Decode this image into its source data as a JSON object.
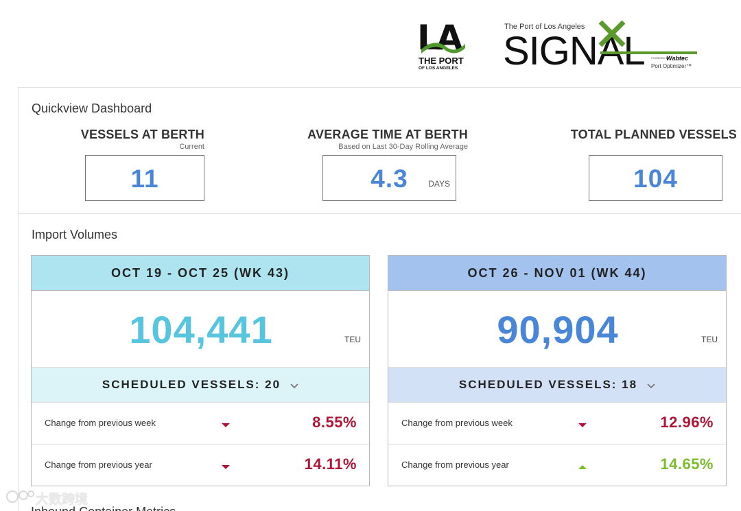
{
  "header": {
    "la_logo": {
      "mark": "LA",
      "line1": "THE PORT",
      "line2": "OF LOS ANGELES"
    },
    "signal_logo": {
      "overline": "The Port of Los Angeles",
      "wordmark": "SIGNAL",
      "powered_by": "POWERED BY",
      "partner": "Wabtec",
      "product": "Port Optimizer™"
    }
  },
  "quickview": {
    "title": "Quickview Dashboard",
    "metrics": [
      {
        "title": "VESSELS AT BERTH",
        "subtitle": "Current",
        "value": "11",
        "unit": ""
      },
      {
        "title": "AVERAGE TIME AT BERTH",
        "subtitle": "Based on Last 30-Day Rolling Average",
        "value": "4.3",
        "unit": "DAYS"
      },
      {
        "title": "TOTAL PLANNED VESSELS",
        "subtitle": "",
        "value": "104",
        "unit": ""
      }
    ]
  },
  "imports": {
    "title": "Import Volumes",
    "weeks": [
      {
        "range": "OCT 19 - OCT 25 (WK 43)",
        "value": "104,441",
        "unit": "TEU",
        "scheduled": "SCHEDULED VESSELS: 20",
        "rows": [
          {
            "label": "Change from previous week",
            "direction": "down",
            "value": "8.55%"
          },
          {
            "label": "Change from previous year",
            "direction": "down",
            "value": "14.11%"
          }
        ]
      },
      {
        "range": "OCT 26 - NOV 01 (WK 44)",
        "value": "90,904",
        "unit": "TEU",
        "scheduled": "SCHEDULED VESSELS: 18",
        "rows": [
          {
            "label": "Change from previous week",
            "direction": "down",
            "value": "12.96%"
          },
          {
            "label": "Change from previous year",
            "direction": "up",
            "value": "14.65%"
          }
        ]
      }
    ]
  },
  "next_section": {
    "title": "Inbound Container Metrics"
  },
  "watermark": {
    "text": "大数跨境"
  },
  "colors": {
    "accent_blue": "#4a86d8",
    "light_blue": "#58c5df",
    "down_red": "#b01535",
    "up_green": "#7cbc2c",
    "signal_green": "#5b9a2c"
  },
  "icons": {
    "arrow_down": "triangle-down-icon",
    "arrow_up": "triangle-up-icon",
    "chevron": "chevron-down-icon"
  }
}
